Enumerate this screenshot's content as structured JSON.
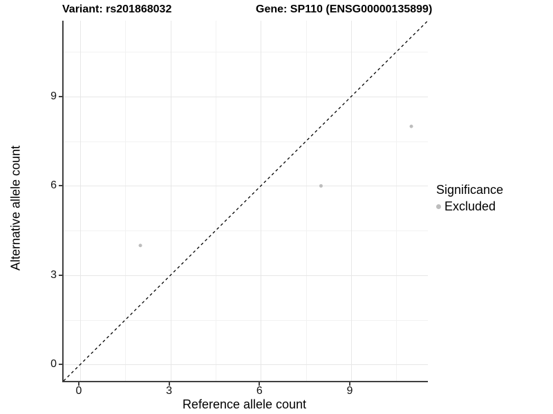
{
  "header": {
    "variant_title": "Variant: rs201868032",
    "gene_title": "Gene: SP110 (ENSG00000135899)"
  },
  "axes": {
    "x_label": "Reference allele count",
    "y_label": "Alternative allele count"
  },
  "legend": {
    "title": "Significance",
    "items": [
      {
        "label": "Excluded",
        "color": "#bdbdbd"
      }
    ]
  },
  "chart_data": {
    "type": "scatter",
    "title": "Variant: rs201868032 — Gene: SP110 (ENSG00000135899)",
    "xlabel": "Reference allele count",
    "ylabel": "Alternative allele count",
    "xlim": [
      -0.55,
      11.55
    ],
    "ylim": [
      -0.55,
      11.55
    ],
    "x_ticks": [
      0,
      3,
      6,
      9
    ],
    "y_ticks": [
      0,
      3,
      6,
      9
    ],
    "x_minor_ticks": [
      1.5,
      4.5,
      7.5,
      10.5
    ],
    "y_minor_ticks": [
      1.5,
      4.5,
      7.5,
      10.5
    ],
    "grid": true,
    "legend_position": "right",
    "series": [
      {
        "name": "Excluded",
        "color": "#bdbdbd",
        "point_radius": 2.5,
        "points": [
          {
            "x": 2,
            "y": 4
          },
          {
            "x": 8,
            "y": 6
          },
          {
            "x": 11,
            "y": 8
          }
        ]
      }
    ],
    "reference_line": {
      "equation": "y = x",
      "style": "dashed",
      "color": "#000000",
      "from": {
        "x": -0.55,
        "y": -0.55
      },
      "to": {
        "x": 11.55,
        "y": 11.55
      }
    }
  }
}
